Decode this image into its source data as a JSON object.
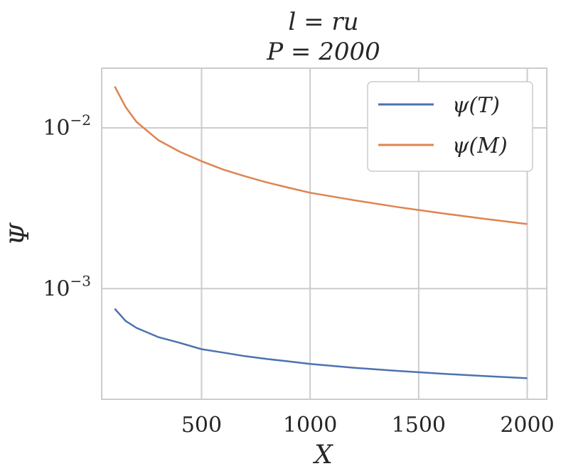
{
  "chart_data": {
    "type": "line",
    "title": [
      "l = ru",
      "P = 2000"
    ],
    "xlabel": "X",
    "ylabel": "Ψ",
    "xlim": [
      40,
      2090
    ],
    "ylim": [
      0.000205,
      0.0235
    ],
    "yscale": "log",
    "grid": true,
    "legend_position": "top-right",
    "x_ticks": [
      {
        "value": 500,
        "label": "500"
      },
      {
        "value": 1000,
        "label": "1000"
      },
      {
        "value": 1500,
        "label": "1500"
      },
      {
        "value": 2000,
        "label": "2000"
      }
    ],
    "y_ticks": [
      {
        "value": 0.01,
        "label": "10",
        "exp": "−2"
      },
      {
        "value": 0.001,
        "label": "10",
        "exp": "−3"
      }
    ],
    "series": [
      {
        "name": "ψ(T)",
        "color": "#4c72b0",
        "x": [
          100,
          150,
          200,
          300,
          400,
          500,
          600,
          700,
          800,
          900,
          1000,
          1200,
          1400,
          1600,
          1800,
          2000
        ],
        "y": [
          0.00075,
          0.00063,
          0.00057,
          0.0005,
          0.00046,
          0.00042,
          0.0004,
          0.00038,
          0.000365,
          0.000353,
          0.00034,
          0.000322,
          0.000308,
          0.000296,
          0.000286,
          0.000277
        ]
      },
      {
        "name": "ψ(M)",
        "color": "#dd8452",
        "x": [
          100,
          150,
          200,
          300,
          400,
          500,
          600,
          700,
          800,
          900,
          1000,
          1200,
          1400,
          1600,
          1800,
          2000
        ],
        "y": [
          0.0181,
          0.0135,
          0.0109,
          0.0084,
          0.0071,
          0.0062,
          0.0055,
          0.005,
          0.00458,
          0.00425,
          0.00395,
          0.00355,
          0.00322,
          0.00295,
          0.00272,
          0.00252
        ]
      }
    ]
  }
}
